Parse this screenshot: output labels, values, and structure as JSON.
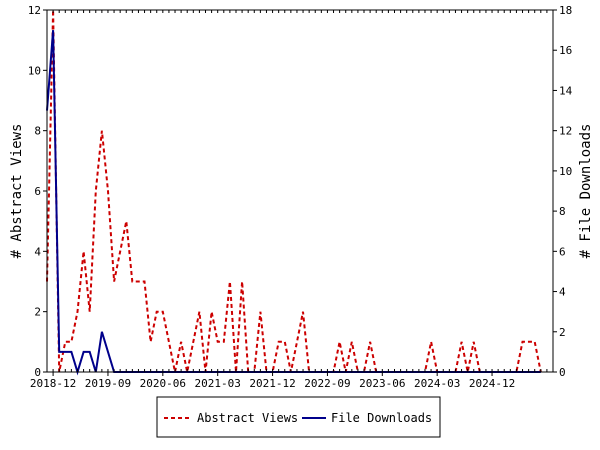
{
  "chart_data": {
    "type": "line",
    "title": "",
    "xlabel": "",
    "ylabel_left": "# Abstract Views",
    "ylabel_right": "# File Downloads",
    "ylim_left": [
      0,
      12
    ],
    "ylim_right": [
      0,
      18
    ],
    "yticks_left": [
      "0",
      "2",
      "4",
      "6",
      "8",
      "10",
      "12"
    ],
    "yticks_right": [
      "0",
      "2",
      "4",
      "6",
      "8",
      "10",
      "12",
      "14",
      "16",
      "18"
    ],
    "xlim": [
      "2018-11",
      "2025-10"
    ],
    "x_tick_labels": [
      {
        "date": "2018-12",
        "label": "2018-12"
      },
      {
        "date": "2019-09",
        "label": "2019-09"
      },
      {
        "date": "2020-06",
        "label": "2020-06"
      },
      {
        "date": "2021-03",
        "label": "2021-03"
      },
      {
        "date": "2021-12",
        "label": "2021-12"
      },
      {
        "date": "2022-09",
        "label": "2022-09"
      },
      {
        "date": "2023-06",
        "label": "2023-06"
      },
      {
        "date": "2024-03",
        "label": "2024-03"
      },
      {
        "date": "2024-12",
        "label": "2024-12"
      }
    ],
    "grid": false,
    "legend": "bottom",
    "series": [
      {
        "name": "Abstract Views",
        "axis": "left",
        "color": "#cc0000",
        "style": "dashed",
        "points": [
          [
            "2018-11",
            3
          ],
          [
            "2018-12",
            12
          ],
          [
            "2019-01",
            0
          ],
          [
            "2019-02",
            1
          ],
          [
            "2019-03",
            1
          ],
          [
            "2019-04",
            2
          ],
          [
            "2019-05",
            4
          ],
          [
            "2019-06",
            2
          ],
          [
            "2019-07",
            6
          ],
          [
            "2019-08",
            8
          ],
          [
            "2019-09",
            6
          ],
          [
            "2019-10",
            3
          ],
          [
            "2019-11",
            4
          ],
          [
            "2019-12",
            5
          ],
          [
            "2020-01",
            3
          ],
          [
            "2020-02",
            3
          ],
          [
            "2020-03",
            3
          ],
          [
            "2020-04",
            1
          ],
          [
            "2020-05",
            2
          ],
          [
            "2020-06",
            2
          ],
          [
            "2020-07",
            1
          ],
          [
            "2020-08",
            0
          ],
          [
            "2020-09",
            1
          ],
          [
            "2020-10",
            0
          ],
          [
            "2020-11",
            1
          ],
          [
            "2020-12",
            2
          ],
          [
            "2021-01",
            0
          ],
          [
            "2021-02",
            2
          ],
          [
            "2021-03",
            1
          ],
          [
            "2021-04",
            1
          ],
          [
            "2021-05",
            3
          ],
          [
            "2021-06",
            0
          ],
          [
            "2021-07",
            3
          ],
          [
            "2021-08",
            0
          ],
          [
            "2021-09",
            0
          ],
          [
            "2021-10",
            2
          ],
          [
            "2021-11",
            0
          ],
          [
            "2021-12",
            0
          ],
          [
            "2022-01",
            1
          ],
          [
            "2022-02",
            1
          ],
          [
            "2022-03",
            0
          ],
          [
            "2022-04",
            1
          ],
          [
            "2022-05",
            2
          ],
          [
            "2022-06",
            0
          ],
          [
            "2022-07",
            0
          ],
          [
            "2022-08",
            0
          ],
          [
            "2022-09",
            0
          ],
          [
            "2022-10",
            0
          ],
          [
            "2022-11",
            1
          ],
          [
            "2022-12",
            0
          ],
          [
            "2023-01",
            1
          ],
          [
            "2023-02",
            0
          ],
          [
            "2023-03",
            0
          ],
          [
            "2023-04",
            1
          ],
          [
            "2023-05",
            0
          ],
          [
            "2023-06",
            0
          ],
          [
            "2023-07",
            0
          ],
          [
            "2023-08",
            0
          ],
          [
            "2023-09",
            0
          ],
          [
            "2023-10",
            0
          ],
          [
            "2023-11",
            0
          ],
          [
            "2023-12",
            0
          ],
          [
            "2024-01",
            0
          ],
          [
            "2024-02",
            1
          ],
          [
            "2024-03",
            0
          ],
          [
            "2024-04",
            0
          ],
          [
            "2024-05",
            0
          ],
          [
            "2024-06",
            0
          ],
          [
            "2024-07",
            1
          ],
          [
            "2024-08",
            0
          ],
          [
            "2024-09",
            1
          ],
          [
            "2024-10",
            0
          ],
          [
            "2024-11",
            0
          ],
          [
            "2024-12",
            0
          ],
          [
            "2025-01",
            0
          ],
          [
            "2025-02",
            0
          ],
          [
            "2025-03",
            0
          ],
          [
            "2025-04",
            0
          ],
          [
            "2025-05",
            1
          ],
          [
            "2025-06",
            1
          ],
          [
            "2025-07",
            1
          ],
          [
            "2025-08",
            0
          ]
        ]
      },
      {
        "name": "File Downloads",
        "axis": "right",
        "color": "#00008b",
        "style": "solid",
        "points": [
          [
            "2018-11",
            13
          ],
          [
            "2018-12",
            17
          ],
          [
            "2019-01",
            1
          ],
          [
            "2019-02",
            1
          ],
          [
            "2019-03",
            1
          ],
          [
            "2019-04",
            0
          ],
          [
            "2019-05",
            1
          ],
          [
            "2019-06",
            1
          ],
          [
            "2019-07",
            0
          ],
          [
            "2019-08",
            2
          ],
          [
            "2019-09",
            1
          ],
          [
            "2019-10",
            0
          ],
          [
            "2019-11",
            0
          ],
          [
            "2019-12",
            0
          ],
          [
            "2020-06",
            0
          ],
          [
            "2021-03",
            0
          ],
          [
            "2021-12",
            0
          ],
          [
            "2022-09",
            0
          ],
          [
            "2023-06",
            0
          ],
          [
            "2024-03",
            0
          ],
          [
            "2024-12",
            0
          ],
          [
            "2025-08",
            0
          ]
        ]
      }
    ]
  }
}
